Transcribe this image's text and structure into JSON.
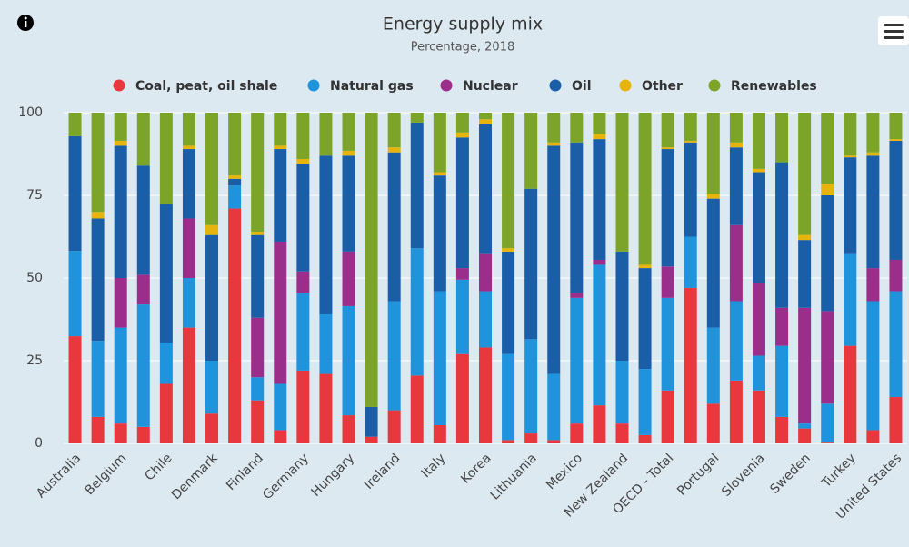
{
  "chart_data": {
    "type": "stacked_bar",
    "title": "Energy supply mix",
    "subtitle": "Percentage, 2018",
    "categories": [
      "Australia",
      null,
      "Belgium",
      null,
      "Chile",
      null,
      "Denmark",
      null,
      "Finland",
      null,
      "Germany",
      null,
      "Hungary",
      null,
      "Ireland",
      null,
      "Italy",
      null,
      "Korea",
      null,
      "Lithuania",
      null,
      "Mexico",
      null,
      "New Zealand",
      null,
      "OECD - Total",
      null,
      "Portugal",
      null,
      "Slovenia",
      null,
      "Sweden",
      null,
      "Turkey",
      null,
      "United States"
    ],
    "series": [
      {
        "name": "Coal, peat, oil shale",
        "color": "#e8383d",
        "values": [
          32.4,
          8,
          6,
          5,
          18,
          35,
          9,
          71,
          13,
          4,
          22,
          21,
          8.5,
          2,
          10,
          20.5,
          5.5,
          27,
          29,
          1,
          3,
          1,
          6,
          11.5,
          6,
          2.5,
          16,
          47,
          12,
          19,
          16,
          8,
          4.5,
          0.5,
          29.5,
          4,
          14
        ]
      },
      {
        "name": "Natural gas",
        "color": "#1f93dc",
        "values": [
          25.8,
          23,
          29,
          37,
          12.5,
          15,
          16,
          7,
          7,
          14,
          23.5,
          18,
          33,
          0,
          33,
          38.5,
          40.5,
          22.5,
          17,
          26,
          28.5,
          20,
          38,
          42.5,
          19,
          20,
          28,
          15.5,
          23,
          24,
          10.5,
          21.5,
          1.5,
          11.5,
          28,
          39,
          32
        ]
      },
      {
        "name": "Nuclear",
        "color": "#9b2e8a",
        "values": [
          0,
          0,
          15,
          9,
          0,
          18,
          0,
          0,
          18,
          43,
          6.5,
          0,
          16.5,
          0,
          0,
          0,
          0,
          3.5,
          11.5,
          0,
          0,
          0,
          1.5,
          1.5,
          0,
          0,
          9.5,
          0,
          0,
          23,
          22,
          11.5,
          35,
          28,
          0,
          10,
          9.5
        ]
      },
      {
        "name": "Oil",
        "color": "#1a5ea8",
        "values": [
          34.7,
          37,
          40,
          33,
          42,
          21,
          38,
          2,
          25,
          28,
          32.5,
          48,
          29,
          9,
          45,
          38,
          35,
          39.5,
          39,
          31,
          45.5,
          69,
          45.5,
          36.5,
          33,
          30.5,
          35.5,
          28.5,
          39,
          23.5,
          33.5,
          44,
          20.5,
          35,
          29,
          34,
          36
        ]
      },
      {
        "name": "Other",
        "color": "#e6b40a",
        "values": [
          0,
          2,
          1.5,
          0,
          0,
          1,
          3,
          1,
          1,
          1,
          1.5,
          0,
          1.5,
          0,
          1.5,
          0,
          1,
          1.5,
          1.5,
          1,
          0,
          1,
          0,
          1.5,
          0,
          1,
          0.5,
          0.5,
          1.5,
          1.5,
          1,
          0,
          1.5,
          3.5,
          0.5,
          1,
          0.5
        ]
      },
      {
        "name": "Renewables",
        "color": "#7ba428",
        "values": [
          7.1,
          30,
          8.5,
          16,
          27.5,
          10,
          34,
          19,
          36,
          10,
          14,
          13,
          11.5,
          89,
          10.5,
          3,
          18,
          6,
          2,
          41,
          23,
          9,
          9,
          6.5,
          42,
          46,
          10.5,
          8.5,
          24.5,
          9,
          17,
          15,
          37,
          21.5,
          13,
          12,
          8
        ]
      }
    ],
    "ylim": [
      0,
      100
    ],
    "yticks": [
      0,
      25,
      50,
      75,
      100
    ],
    "grid": true
  }
}
